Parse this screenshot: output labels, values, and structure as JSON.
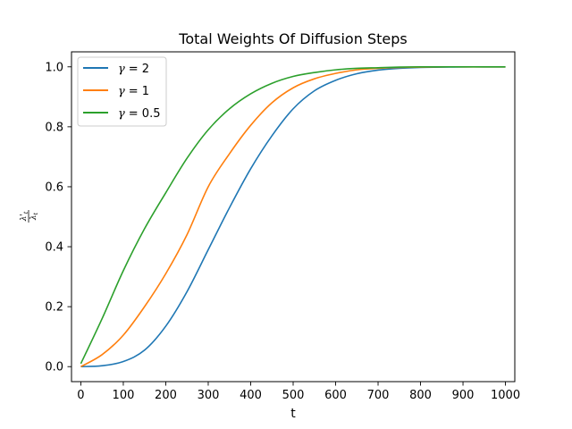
{
  "chart_data": {
    "type": "line",
    "title": "Total Weights Of Diffusion Steps",
    "xlabel": "t",
    "ylabel": {
      "num_var": "λ'",
      "num_sub": "t",
      "den_var": "λ",
      "den_sub": "t"
    },
    "xlim": [
      -22,
      1022
    ],
    "ylim": [
      -0.05,
      1.05
    ],
    "xticks": [
      0,
      100,
      200,
      300,
      400,
      500,
      600,
      700,
      800,
      900,
      1000
    ],
    "yticks": [
      0.0,
      0.2,
      0.4,
      0.6,
      0.8,
      1.0
    ],
    "ytick_labels": [
      "0.0",
      "0.2",
      "0.4",
      "0.6",
      "0.8",
      "1.0"
    ],
    "grid": false,
    "legend_position": "top-left",
    "x": [
      0,
      50,
      100,
      150,
      200,
      250,
      300,
      350,
      400,
      450,
      500,
      550,
      600,
      650,
      700,
      750,
      800,
      850,
      900,
      950,
      1000
    ],
    "series": [
      {
        "name": "γ = 2",
        "legend_var": "γ",
        "legend_value": "= 2",
        "color": "#1f77b4",
        "values": [
          0.0,
          0.003,
          0.017,
          0.055,
          0.135,
          0.25,
          0.39,
          0.53,
          0.66,
          0.77,
          0.86,
          0.92,
          0.955,
          0.977,
          0.989,
          0.995,
          0.998,
          0.999,
          1.0,
          1.0,
          1.0
        ]
      },
      {
        "name": "γ = 1",
        "legend_var": "γ",
        "legend_value": "= 1",
        "color": "#ff7f0e",
        "values": [
          0.0,
          0.04,
          0.105,
          0.2,
          0.31,
          0.44,
          0.6,
          0.71,
          0.805,
          0.88,
          0.93,
          0.96,
          0.978,
          0.99,
          0.995,
          0.998,
          0.999,
          1.0,
          1.0,
          1.0,
          1.0
        ]
      },
      {
        "name": "γ = 0.5",
        "legend_var": "γ",
        "legend_value": "= 0.5",
        "color": "#2ca02c",
        "values": [
          0.01,
          0.16,
          0.32,
          0.46,
          0.58,
          0.695,
          0.79,
          0.86,
          0.91,
          0.945,
          0.968,
          0.981,
          0.99,
          0.995,
          0.997,
          0.999,
          1.0,
          1.0,
          1.0,
          1.0,
          1.0
        ]
      }
    ]
  }
}
